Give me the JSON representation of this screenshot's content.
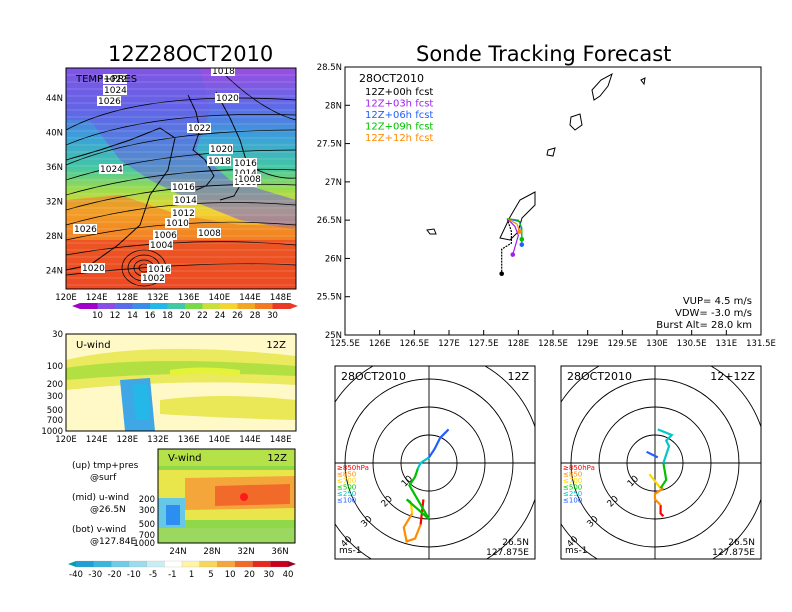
{
  "left_title": "12Z28OCT2010",
  "right_title": "Sonde Tracking Forecast",
  "map_panel": {
    "label": "TEMP+PRES",
    "lon_ticks": [
      "120E",
      "124E",
      "128E",
      "132E",
      "136E",
      "140E",
      "144E",
      "148E"
    ],
    "lat_ticks": [
      "44N",
      "40N",
      "36N",
      "32N",
      "28N",
      "24N"
    ],
    "isobar_labels": [
      {
        "text": "1018"
      },
      {
        "text": "1022"
      },
      {
        "text": "1024"
      },
      {
        "text": "1026"
      },
      {
        "text": "1020"
      },
      {
        "text": "1022"
      },
      {
        "text": "1020"
      },
      {
        "text": "1018"
      },
      {
        "text": "1016"
      },
      {
        "text": "1014"
      },
      {
        "text": "1010"
      },
      {
        "text": "1008"
      },
      {
        "text": "1024"
      },
      {
        "text": "1016"
      },
      {
        "text": "1014"
      },
      {
        "text": "1012"
      },
      {
        "text": "1010"
      },
      {
        "text": "1026"
      },
      {
        "text": "1006"
      },
      {
        "text": "1004"
      },
      {
        "text": "1008"
      },
      {
        "text": "1020"
      },
      {
        "text": "1016"
      },
      {
        "text": "1002"
      }
    ],
    "colorbar": [
      "10",
      "12",
      "14",
      "16",
      "18",
      "20",
      "22",
      "24",
      "26",
      "28",
      "30"
    ]
  },
  "u_panel": {
    "label": "U-wind",
    "time": "12Z",
    "p_ticks": [
      "30",
      "100",
      "200",
      "300",
      "500",
      "700",
      "1000"
    ],
    "lon_ticks": [
      "120E",
      "124E",
      "128E",
      "132E",
      "136E",
      "140E",
      "144E",
      "148E"
    ]
  },
  "v_panel": {
    "label": "V-wind",
    "time": "12Z",
    "p_ticks": [
      "200",
      "300",
      "500",
      "700",
      "1000"
    ],
    "lat_ticks": [
      "24N",
      "28N",
      "32N",
      "36N"
    ]
  },
  "legend_text": {
    "up_1": "(up) tmp+pres",
    "up_2": "@surf",
    "mid_1": "(mid) u-wind",
    "mid_2": "@26.5N",
    "bot_1": "(bot) v-wind",
    "bot_2": "@127.84E"
  },
  "wind_colorbar": [
    "-40",
    "-30",
    "-20",
    "-10",
    "-5",
    "-1",
    "1",
    "5",
    "10",
    "20",
    "30",
    "40"
  ],
  "track_panel": {
    "date": "28OCT2010",
    "forecasts": [
      {
        "label": "12Z+00h fcst",
        "color": "#000000"
      },
      {
        "label": "12Z+03h fcst",
        "color": "#a020f0"
      },
      {
        "label": "12Z+06h fcst",
        "color": "#2060ff"
      },
      {
        "label": "12Z+09h fcst",
        "color": "#00c000"
      },
      {
        "label": "12Z+12h fcst",
        "color": "#ff8c00"
      }
    ],
    "lat_ticks": [
      "28.5N",
      "28N",
      "27.5N",
      "27N",
      "26.5N",
      "26N",
      "25.5N",
      "25N"
    ],
    "lon_ticks": [
      "125.5E",
      "126E",
      "126.5E",
      "127E",
      "127.5E",
      "128E",
      "128.5E",
      "129E",
      "129.5E",
      "130E",
      "130.5E",
      "131E",
      "131.5E"
    ],
    "vup": "VUP= 4.5 m/s",
    "vdw": "VDW= -3.0 m/s",
    "burst": "Burst Alt= 28.0 km"
  },
  "hodo_left": {
    "date": "28OCT2010",
    "time": "12Z",
    "ring_labels": [
      "10",
      "20",
      "30",
      "40"
    ],
    "levels": [
      "≥850hPa",
      "≤850",
      "≤700",
      "≤500",
      "≤250",
      "≤100"
    ],
    "unit": "ms-1",
    "lat": "26.5N",
    "lon": "127.875E"
  },
  "hodo_right": {
    "date": "28OCT2010",
    "time": "12+12Z",
    "ring_labels": [
      "10",
      "20",
      "30",
      "40"
    ],
    "levels": [
      "≥850hPa",
      "≤850",
      "≤700",
      "≤500",
      "≤250",
      "≤100"
    ],
    "unit": "ms-1",
    "lat": "26.5N",
    "lon": "127.875E"
  },
  "colors": {
    "level_colors": [
      "#ff0000",
      "#ff8c00",
      "#ffd700",
      "#00c000",
      "#00c8c8",
      "#2060ff"
    ]
  },
  "chart_data": [
    {
      "type": "heatmap",
      "title": "TEMP+PRES",
      "xlabel": "",
      "ylabel": "",
      "xlim": [
        120,
        150
      ],
      "ylim": [
        21,
        48
      ],
      "colorbar_levels": [
        10,
        12,
        14,
        16,
        18,
        20,
        22,
        24,
        26,
        28,
        30
      ]
    },
    {
      "type": "heatmap",
      "title": "U-wind",
      "xlim": [
        120,
        150
      ],
      "ylim": [
        1000,
        30
      ],
      "ylog": true
    },
    {
      "type": "heatmap",
      "title": "V-wind",
      "xlim": [
        21,
        39
      ],
      "ylim": [
        1000,
        200
      ],
      "ylog": true
    },
    {
      "type": "line",
      "title": "Sonde Tracking Forecast",
      "xlim": [
        125.5,
        131.5
      ],
      "ylim": [
        25,
        28.5
      ],
      "series": [
        {
          "name": "12Z+00h fcst",
          "x": [
            127.84,
            127.9,
            127.9,
            127.76,
            127.76
          ],
          "y": [
            26.52,
            26.35,
            26.2,
            26.12,
            25.8
          ]
        },
        {
          "name": "12Z+03h fcst",
          "x": [
            127.84,
            127.95,
            128.0,
            127.92
          ],
          "y": [
            26.52,
            26.42,
            26.3,
            26.05
          ]
        },
        {
          "name": "12Z+06h fcst",
          "x": [
            127.84,
            128.02,
            128.05,
            128.05
          ],
          "y": [
            26.52,
            26.48,
            26.35,
            26.18
          ]
        },
        {
          "name": "12Z+09h fcst",
          "x": [
            127.84,
            128.0,
            128.05,
            128.05
          ],
          "y": [
            26.52,
            26.5,
            26.4,
            26.25
          ]
        },
        {
          "name": "12Z+12h fcst",
          "x": [
            127.84,
            127.98,
            128.02
          ],
          "y": [
            26.52,
            26.45,
            26.35
          ]
        }
      ]
    },
    {
      "type": "line",
      "title": "Hodograph 12Z",
      "series": [
        {
          "name": "≥850hPa",
          "x": [
            -2,
            -3
          ],
          "y": [
            -13,
            -22
          ]
        },
        {
          "name": "≤850",
          "x": [
            -3,
            -5,
            -8,
            -9,
            -6
          ],
          "y": [
            -22,
            -27,
            -28,
            -23,
            -18
          ]
        },
        {
          "name": "≤700",
          "x": [
            -6,
            -6.5
          ],
          "y": [
            -18,
            -14
          ]
        },
        {
          "name": "≤500",
          "x": [
            -6.5,
            -8,
            0,
            -7,
            -5,
            -4
          ],
          "y": [
            -14,
            -13,
            -20,
            -8,
            -5,
            -2
          ]
        },
        {
          "name": "≤250",
          "x": [
            -4,
            -3,
            0
          ],
          "y": [
            -2,
            0,
            2
          ]
        },
        {
          "name": "≤100",
          "x": [
            0,
            2,
            4,
            6,
            7
          ],
          "y": [
            2,
            5,
            9,
            11,
            12
          ]
        }
      ]
    },
    {
      "type": "line",
      "title": "Hodograph 12+12Z",
      "series": [
        {
          "name": "≥850hPa",
          "x": [
            2,
            2,
            3
          ],
          "y": [
            -15,
            -18,
            -19
          ]
        },
        {
          "name": "≤850",
          "x": [
            3,
            0,
            0,
            2
          ],
          "y": [
            -9,
            -11,
            -13,
            -15
          ]
        },
        {
          "name": "≤700",
          "x": [
            -2,
            2
          ],
          "y": [
            -4,
            -9
          ]
        },
        {
          "name": "≤500",
          "x": [
            2,
            4,
            3
          ],
          "y": [
            -9,
            -6,
            0
          ]
        },
        {
          "name": "≤250",
          "x": [
            3,
            5,
            4,
            6,
            1
          ],
          "y": [
            0,
            6,
            8,
            10,
            12
          ]
        },
        {
          "name": "≤100",
          "x": [
            1,
            -3
          ],
          "y": [
            2,
            4
          ]
        }
      ]
    }
  ]
}
